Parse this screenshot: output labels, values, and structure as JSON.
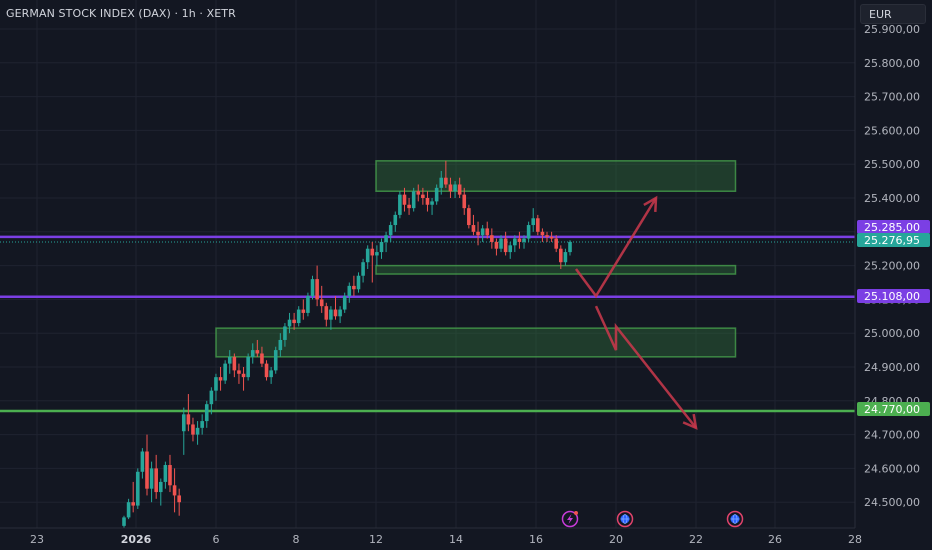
{
  "header": {
    "title": "GERMAN STOCK INDEX (DAX) · 1h · XETR",
    "currency": "EUR"
  },
  "colors": {
    "background": "#131722",
    "grid": "#1f2330",
    "up": "#26a69a",
    "down": "#ef5350",
    "zone_fill": "#2f6b3a",
    "zone_stroke": "#4caf50",
    "purple_line": "#7b3fe4",
    "green_line": "#4caf50",
    "arrow": "#c2374a"
  },
  "events": [
    {
      "icon": "lightning-icon",
      "date": "17"
    },
    {
      "icon": "globe-icon",
      "date": "20"
    },
    {
      "icon": "globe-icon",
      "date": "23"
    }
  ],
  "chart_data": {
    "type": "candlestick",
    "title": "GERMAN STOCK INDEX (DAX) · 1h · XETR",
    "ylim": [
      24420,
      25940
    ],
    "x_tick_labels": [
      {
        "label": "23",
        "date": "2025-12-23"
      },
      {
        "label": "2026",
        "date": "2026-01-02",
        "bold": true
      },
      {
        "label": "6",
        "date": "2026-01-06"
      },
      {
        "label": "8",
        "date": "2026-01-08"
      },
      {
        "label": "12",
        "date": "2026-01-12"
      },
      {
        "label": "14",
        "date": "2026-01-14"
      },
      {
        "label": "16",
        "date": "2026-01-16"
      },
      {
        "label": "20",
        "date": "2026-01-20"
      },
      {
        "label": "22",
        "date": "2026-01-22"
      },
      {
        "label": "26",
        "date": "2026-01-26"
      },
      {
        "label": "28",
        "date": "2026-01-28"
      }
    ],
    "y_tick_labels": [
      "25.900,00",
      "25.800,00",
      "25.700,00",
      "25.600,00",
      "25.500,00",
      "25.400,00",
      "25.300,00",
      "25.200,00",
      "25.100,00",
      "25.000,00",
      "24.900,00",
      "24.800,00",
      "24.700,00",
      "24.600,00",
      "24.500,00"
    ],
    "y_tick_values": [
      25900,
      25800,
      25700,
      25600,
      25500,
      25400,
      25300,
      25200,
      25100,
      25000,
      24900,
      24800,
      24700,
      24600,
      24500
    ],
    "price_labels": [
      {
        "text": "25.285,00",
        "value": 25285,
        "color": "#7b3fe4"
      },
      {
        "text": "25.276,95",
        "value": 25276.95,
        "color": "#26a69a"
      },
      {
        "text": "25.108,00",
        "value": 25108,
        "color": "#7b3fe4"
      },
      {
        "text": "24.770,00",
        "value": 24770,
        "color": "#4caf50"
      }
    ],
    "horizontal_lines": [
      {
        "value": 25285,
        "color": "#7b3fe4"
      },
      {
        "value": 25108,
        "color": "#7b3fe4"
      },
      {
        "value": 24770,
        "color": "#4caf50"
      }
    ],
    "zones": [
      {
        "y_top": 25510,
        "y_bottom": 25420,
        "x_start": "2026-01-12",
        "x_end": "2026-01-24"
      },
      {
        "y_top": 25200,
        "y_bottom": 25175,
        "x_start": "2026-01-12",
        "x_end": "2026-01-24"
      },
      {
        "y_top": 25015,
        "y_bottom": 24930,
        "x_start": "2026-01-06",
        "x_end": "2026-01-24"
      }
    ],
    "projections": [
      {
        "points": [
          [
            25190,
            "2026-01-18"
          ],
          [
            25110,
            "2026-01-19"
          ],
          [
            25400,
            "2026-01-21"
          ]
        ]
      },
      {
        "points": [
          [
            25080,
            "2026-01-19"
          ],
          [
            24950,
            "2026-01-20"
          ],
          [
            25020,
            "2026-01-20"
          ],
          [
            24720,
            "2026-01-22"
          ]
        ]
      }
    ],
    "candles": [
      [
        24430,
        24460,
        24420,
        24455
      ],
      [
        24455,
        24510,
        24450,
        24500
      ],
      [
        24500,
        24560,
        24470,
        24490
      ],
      [
        24490,
        24600,
        24480,
        24590
      ],
      [
        24590,
        24660,
        24570,
        24650
      ],
      [
        24650,
        24700,
        24520,
        24540
      ],
      [
        24540,
        24620,
        24500,
        24600
      ],
      [
        24600,
        24640,
        24510,
        24530
      ],
      [
        24530,
        24570,
        24490,
        24560
      ],
      [
        24560,
        24620,
        24540,
        24610
      ],
      [
        24610,
        24640,
        24530,
        24550
      ],
      [
        24550,
        24600,
        24470,
        24520
      ],
      [
        24520,
        24540,
        24460,
        24500
      ],
      [
        24710,
        24780,
        24640,
        24760
      ],
      [
        24760,
        24820,
        24710,
        24730
      ],
      [
        24730,
        24750,
        24680,
        24700
      ],
      [
        24700,
        24740,
        24670,
        24720
      ],
      [
        24720,
        24760,
        24700,
        24740
      ],
      [
        24740,
        24800,
        24720,
        24790
      ],
      [
        24790,
        24840,
        24760,
        24830
      ],
      [
        24830,
        24880,
        24800,
        24870
      ],
      [
        24870,
        24900,
        24830,
        24860
      ],
      [
        24860,
        24920,
        24850,
        24910
      ],
      [
        24910,
        24950,
        24880,
        24930
      ],
      [
        24930,
        24940,
        24870,
        24890
      ],
      [
        24890,
        24910,
        24850,
        24880
      ],
      [
        24880,
        24900,
        24830,
        24870
      ],
      [
        24870,
        24940,
        24860,
        24930
      ],
      [
        24930,
        24970,
        24910,
        24950
      ],
      [
        24950,
        24980,
        24930,
        24940
      ],
      [
        24940,
        24960,
        24900,
        24910
      ],
      [
        24910,
        24920,
        24860,
        24870
      ],
      [
        24870,
        24900,
        24850,
        24890
      ],
      [
        24890,
        24960,
        24880,
        24950
      ],
      [
        24950,
        25000,
        24930,
        24980
      ],
      [
        24980,
        25030,
        24960,
        25020
      ],
      [
        25020,
        25060,
        25000,
        25040
      ],
      [
        25040,
        25060,
        25010,
        25030
      ],
      [
        25030,
        25080,
        25020,
        25070
      ],
      [
        25070,
        25100,
        25040,
        25060
      ],
      [
        25060,
        25120,
        25050,
        25110
      ],
      [
        25110,
        25170,
        25100,
        25160
      ],
      [
        25160,
        25200,
        25080,
        25100
      ],
      [
        25100,
        25140,
        25060,
        25080
      ],
      [
        25080,
        25090,
        25020,
        25040
      ],
      [
        25040,
        25080,
        25010,
        25070
      ],
      [
        25070,
        25110,
        25040,
        25050
      ],
      [
        25050,
        25080,
        25030,
        25070
      ],
      [
        25070,
        25120,
        25060,
        25110
      ],
      [
        25110,
        25150,
        25090,
        25140
      ],
      [
        25140,
        25170,
        25110,
        25130
      ],
      [
        25130,
        25180,
        25120,
        25170
      ],
      [
        25170,
        25220,
        25150,
        25210
      ],
      [
        25210,
        25260,
        25190,
        25250
      ],
      [
        25250,
        25270,
        25150,
        25230
      ],
      [
        25230,
        25260,
        25200,
        25240
      ],
      [
        25240,
        25280,
        25220,
        25270
      ],
      [
        25270,
        25300,
        25240,
        25290
      ],
      [
        25290,
        25330,
        25270,
        25320
      ],
      [
        25320,
        25360,
        25300,
        25350
      ],
      [
        25350,
        25420,
        25340,
        25410
      ],
      [
        25410,
        25430,
        25360,
        25380
      ],
      [
        25380,
        25400,
        25350,
        25370
      ],
      [
        25370,
        25430,
        25360,
        25420
      ],
      [
        25420,
        25440,
        25390,
        25410
      ],
      [
        25410,
        25430,
        25380,
        25400
      ],
      [
        25400,
        25420,
        25360,
        25380
      ],
      [
        25380,
        25400,
        25350,
        25390
      ],
      [
        25390,
        25440,
        25380,
        25430
      ],
      [
        25430,
        25480,
        25410,
        25460
      ],
      [
        25460,
        25510,
        25430,
        25440
      ],
      [
        25440,
        25460,
        25400,
        25420
      ],
      [
        25420,
        25450,
        25400,
        25440
      ],
      [
        25440,
        25460,
        25400,
        25410
      ],
      [
        25410,
        25430,
        25350,
        25370
      ],
      [
        25370,
        25380,
        25310,
        25320
      ],
      [
        25320,
        25350,
        25290,
        25300
      ],
      [
        25300,
        25330,
        25260,
        25290
      ],
      [
        25290,
        25320,
        25270,
        25310
      ],
      [
        25310,
        25330,
        25280,
        25290
      ],
      [
        25290,
        25310,
        25250,
        25270
      ],
      [
        25270,
        25280,
        25230,
        25250
      ],
      [
        25250,
        25290,
        25240,
        25280
      ],
      [
        25280,
        25300,
        25230,
        25240
      ],
      [
        25240,
        25270,
        25220,
        25260
      ],
      [
        25260,
        25290,
        25240,
        25280
      ],
      [
        25280,
        25300,
        25250,
        25270
      ],
      [
        25270,
        25290,
        25250,
        25280
      ],
      [
        25280,
        25330,
        25270,
        25320
      ],
      [
        25320,
        25370,
        25300,
        25340
      ],
      [
        25340,
        25350,
        25290,
        25300
      ],
      [
        25300,
        25310,
        25270,
        25290
      ],
      [
        25290,
        25300,
        25270,
        25285
      ],
      [
        25285,
        25300,
        25270,
        25280
      ],
      [
        25280,
        25290,
        25240,
        25250
      ],
      [
        25250,
        25260,
        25190,
        25210
      ],
      [
        25210,
        25250,
        25200,
        25240
      ],
      [
        25240,
        25275,
        25230,
        25270
      ]
    ]
  }
}
